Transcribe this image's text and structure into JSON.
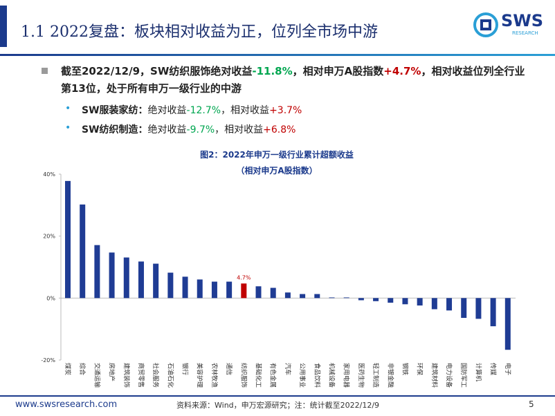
{
  "header": {
    "title": "1.1 2022复盘：板块相对收益为正，位列全市场中游",
    "logo_text": "SWS",
    "logo_sub": "RESEARCH"
  },
  "bullets": [
    {
      "segments": [
        {
          "text": "截至2022/12/9，SW纺织服饰绝对收益"
        },
        {
          "text": "-11.8%",
          "color": "#00a650"
        },
        {
          "text": "，相对申万A股指数"
        },
        {
          "text": "+4.7%",
          "color": "#c00000"
        },
        {
          "text": "，相对收益位列全行业第13位，处于所有申万一级行业的中游"
        }
      ]
    }
  ],
  "sub_bullets": [
    {
      "segments": [
        {
          "text": "SW服装家纺：",
          "bold": true
        },
        {
          "text": "绝对收益"
        },
        {
          "text": "-12.7%",
          "color": "#00a650"
        },
        {
          "text": "，相对收益"
        },
        {
          "text": "+3.7%",
          "color": "#c00000"
        }
      ]
    },
    {
      "segments": [
        {
          "text": "SW纺织制造：",
          "bold": true
        },
        {
          "text": "绝对收益"
        },
        {
          "text": "-9.7%",
          "color": "#00a650"
        },
        {
          "text": "，相对收益"
        },
        {
          "text": "+6.8%",
          "color": "#c00000"
        }
      ]
    }
  ],
  "chart_data": {
    "type": "bar",
    "title": "图2：2022年申万一级行业累计超额收益",
    "subtitle": "（相对申万A股指数）",
    "categories": [
      "煤炭",
      "综合",
      "交通运输",
      "房地产",
      "建筑装饰",
      "商贸零售",
      "社会服务",
      "石油石化",
      "银行",
      "美容护理",
      "农林牧渔",
      "通信",
      "纺织服饰",
      "基础化工",
      "有色金属",
      "汽车",
      "公用事业",
      "食品饮料",
      "机械设备",
      "家用电器",
      "医药生物",
      "轻工制造",
      "非银金融",
      "钢铁",
      "环保",
      "建筑材料",
      "电力设备",
      "国防军工",
      "计算机",
      "传媒",
      "电子"
    ],
    "values": [
      37.8,
      30.2,
      17.1,
      14.7,
      13.1,
      11.8,
      11.1,
      8.2,
      6.9,
      6.0,
      5.3,
      5.3,
      4.7,
      3.8,
      3.3,
      1.8,
      1.3,
      1.3,
      0.2,
      0.2,
      -0.7,
      -1.0,
      -1.5,
      -2.0,
      -2.4,
      -3.6,
      -4.0,
      -6.4,
      -6.7,
      -9.1,
      -16.7
    ],
    "value_labels": [
      null,
      null,
      null,
      null,
      null,
      null,
      null,
      null,
      null,
      null,
      null,
      null,
      "4.7%",
      null,
      null,
      null,
      null,
      null,
      null,
      null,
      null,
      null,
      null,
      null,
      null,
      null,
      null,
      null,
      null,
      null,
      null
    ],
    "colors": [
      "#1f3c94",
      "#1f3c94",
      "#1f3c94",
      "#1f3c94",
      "#1f3c94",
      "#1f3c94",
      "#1f3c94",
      "#1f3c94",
      "#1f3c94",
      "#1f3c94",
      "#1f3c94",
      "#1f3c94",
      "#c00000",
      "#1f3c94",
      "#1f3c94",
      "#1f3c94",
      "#1f3c94",
      "#1f3c94",
      "#1f3c94",
      "#1f3c94",
      "#1f3c94",
      "#1f3c94",
      "#1f3c94",
      "#1f3c94",
      "#1f3c94",
      "#1f3c94",
      "#1f3c94",
      "#1f3c94",
      "#1f3c94",
      "#1f3c94",
      "#1f3c94"
    ],
    "ylim": [
      -20,
      40
    ],
    "yticks": [
      {
        "value": -20,
        "label": "-20%"
      },
      {
        "value": 0,
        "label": "0%"
      },
      {
        "value": 20,
        "label": "20%"
      },
      {
        "value": 40,
        "label": "40%"
      }
    ],
    "grid": false
  },
  "footer": {
    "url": "www.swsresearch.com",
    "source": "资料来源：Wind，申万宏源研究；注：统计截至2022/12/9",
    "page": "5"
  }
}
